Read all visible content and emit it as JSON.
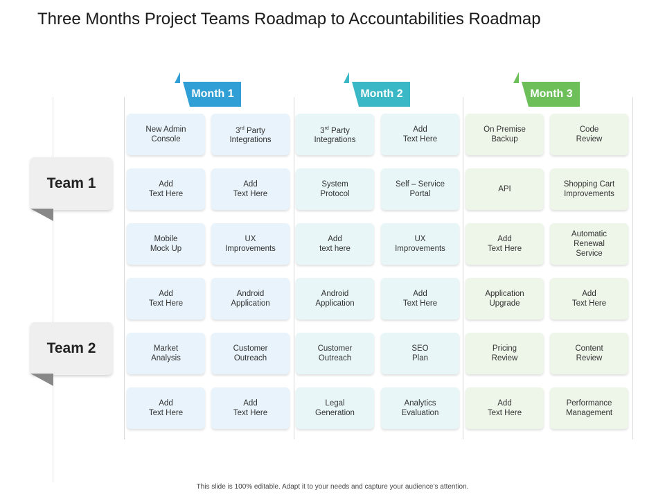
{
  "title": "Three Months Project Teams Roadmap to Accountabilities Roadmap",
  "footer": "This slide is 100% editable. Adapt it to your needs and capture your audience’s attention.",
  "colors": {
    "month1": "#2f9fd5",
    "month2": "#3bb8c6",
    "month3": "#6dbf5a",
    "card1": "#e8f3fb",
    "card2": "#e8f6f8",
    "card3": "#eef6ea",
    "team_fold": "#888888"
  },
  "months": [
    {
      "label": "Month 1"
    },
    {
      "label": "Month 2"
    },
    {
      "label": "Month 3"
    }
  ],
  "teams": [
    {
      "label": "Team 1"
    },
    {
      "label": "Team 2"
    }
  ],
  "cards": [
    [
      [
        "New Admin",
        "Console"
      ],
      [
        "3rd Party",
        "Integrations"
      ],
      [
        "3rd Party",
        "Integrations"
      ],
      [
        "Add",
        "Text Here"
      ],
      [
        "On Premise",
        "Backup"
      ],
      [
        "Code",
        "Review"
      ]
    ],
    [
      [
        "Add",
        "Text Here"
      ],
      [
        "Add",
        "Text Here"
      ],
      [
        "System",
        "Protocol"
      ],
      [
        "Self – Service",
        "Portal"
      ],
      [
        "API"
      ],
      [
        "Shopping Cart",
        "Improvements"
      ]
    ],
    [
      [
        "Mobile",
        "Mock Up"
      ],
      [
        "UX",
        "Improvements"
      ],
      [
        "Add",
        "text here"
      ],
      [
        "UX",
        "Improvements"
      ],
      [
        "Add",
        "Text Here"
      ],
      [
        "Automatic",
        "Renewal",
        "Service"
      ]
    ],
    [
      [
        "Add",
        "Text Here"
      ],
      [
        "Android",
        "Application"
      ],
      [
        "Android",
        "Application"
      ],
      [
        "Add",
        "Text Here"
      ],
      [
        "Application",
        "Upgrade"
      ],
      [
        "Add",
        "Text Here"
      ]
    ],
    [
      [
        "Market",
        "Analysis"
      ],
      [
        "Customer",
        "Outreach"
      ],
      [
        "Customer",
        "Outreach"
      ],
      [
        "SEO",
        "Plan"
      ],
      [
        "Pricing",
        "Review"
      ],
      [
        "Content",
        "Review"
      ]
    ],
    [
      [
        "Add",
        "Text Here"
      ],
      [
        "Add",
        "Text Here"
      ],
      [
        "Legal",
        "Generation"
      ],
      [
        "Analytics",
        "Evaluation"
      ],
      [
        "Add",
        "Text Here"
      ],
      [
        "Performance",
        "Management"
      ]
    ]
  ]
}
